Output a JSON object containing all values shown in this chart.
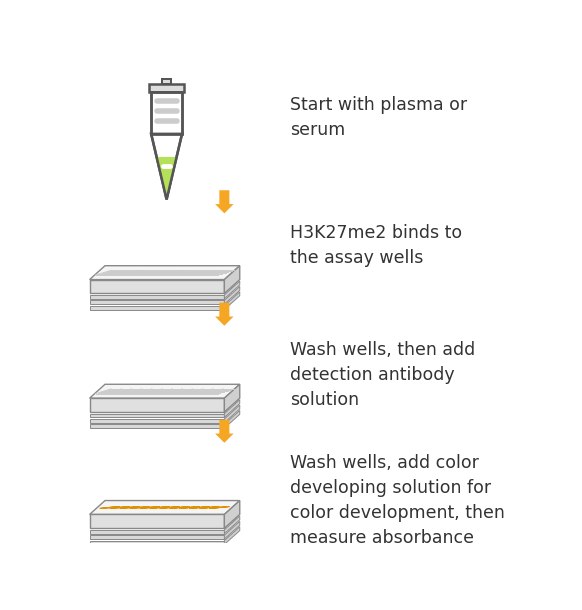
{
  "background_color": "#ffffff",
  "arrow_color": "#F5A623",
  "text_color": "#333333",
  "font_size": 12.5,
  "steps": [
    "Start with plasma or\nserum",
    "H3K27me2 binds to\nthe assay wells",
    "Wash wells, then add\ndetection antibody\nsolution",
    "Wash wells, add color\ndeveloping solution for\ncolor development, then\nmeasure absorbance"
  ],
  "tube_green": "#b5e05a",
  "tube_body_fill": "#ffffff",
  "tube_cap_fill": "#dddddd",
  "tube_outline": "#555555",
  "tube_line_color": "#cccccc",
  "plate_top_fill": "#f5f5f5",
  "plate_front_fill": "#e0e0e0",
  "plate_side_fill": "#d0d0d0",
  "plate_layer_fill": "#d8d8d8",
  "plate_outline": "#888888",
  "plate_grid_color": "#cccccc",
  "plate_orange_fill": "#F5A623",
  "plate_orange_outline": "#e09000"
}
